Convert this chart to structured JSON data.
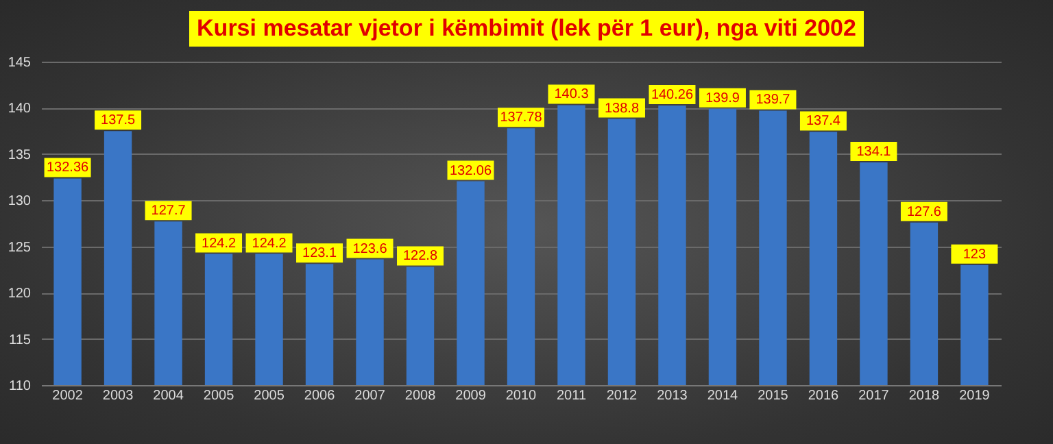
{
  "chart_data": {
    "type": "bar",
    "title": "Kursi mesatar vjetor i këmbimit (lek për 1 eur), nga viti 2002",
    "categories": [
      "2002",
      "2003",
      "2004",
      "2005",
      "2005",
      "2006",
      "2007",
      "2008",
      "2009",
      "2010",
      "2011",
      "2012",
      "2013",
      "2014",
      "2015",
      "2016",
      "2017",
      "2018",
      "2019"
    ],
    "values": [
      132.36,
      137.5,
      127.7,
      124.2,
      124.2,
      123.1,
      123.6,
      122.8,
      132.06,
      137.78,
      140.3,
      138.8,
      140.26,
      139.9,
      139.7,
      137.4,
      134.1,
      127.6,
      123
    ],
    "color": "#3a76c6",
    "ylim": [
      110,
      145
    ],
    "yticks": [
      110,
      115,
      120,
      125,
      130,
      135,
      140,
      145
    ],
    "grid": "y",
    "data_labels": true
  }
}
